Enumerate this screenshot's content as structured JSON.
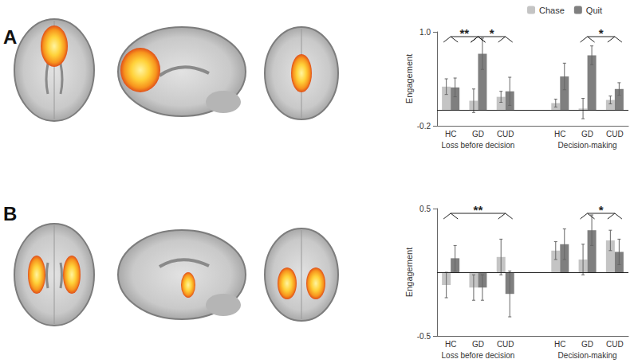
{
  "chart_data": [
    {
      "type": "bar",
      "title": "A",
      "y_label": "Engagement",
      "categories": [
        "HC",
        "GD",
        "CUD",
        null,
        "HC",
        "GD",
        "CUD"
      ],
      "group_labels": [
        "Loss before decision",
        "Decision-making"
      ],
      "series": [
        {
          "name": "Chase",
          "color": "#c4c4c4",
          "values": [
            0.3,
            0.12,
            0.17,
            null,
            0.09,
            0.02,
            0.13
          ],
          "errors": [
            0.1,
            0.15,
            0.07,
            null,
            0.05,
            0.13,
            0.05
          ]
        },
        {
          "name": "Quit",
          "color": "#7f7f7f",
          "values": [
            0.29,
            0.72,
            0.24,
            null,
            0.43,
            0.7,
            0.27
          ],
          "errors": [
            0.12,
            0.2,
            0.18,
            null,
            0.17,
            0.12,
            0.08
          ]
        }
      ],
      "ylim": [
        -0.2,
        1.0
      ],
      "yticks": [
        -0.2,
        {
          "value": 1.0,
          "label": "1.0"
        }
      ],
      "grid": false,
      "legend": "top right",
      "annotations": [
        {
          "group": "Loss before decision",
          "categories": [
            "HC",
            "GD"
          ],
          "label": "**"
        },
        {
          "group": "Loss before decision",
          "categories": [
            "GD",
            "CUD"
          ],
          "label": "*"
        },
        {
          "group": "Decision-making",
          "categories": [
            "GD",
            "CUD"
          ],
          "label": "*"
        }
      ]
    },
    {
      "type": "bar",
      "title": "B",
      "y_label": "Engagement",
      "categories": [
        "HC",
        "GD",
        "CUD",
        null,
        "HC",
        "GD",
        "CUD"
      ],
      "group_labels": [
        "Loss before decision",
        "Decision-making"
      ],
      "series": [
        {
          "name": "Chase",
          "color": "#c4c4c4",
          "values": [
            -0.1,
            -0.12,
            0.12,
            null,
            0.17,
            0.1,
            0.25
          ],
          "errors": [
            0.1,
            0.1,
            0.14,
            null,
            0.07,
            0.12,
            0.08
          ]
        },
        {
          "name": "Quit",
          "color": "#7f7f7f",
          "values": [
            0.11,
            -0.12,
            -0.17,
            null,
            0.22,
            0.33,
            0.16
          ],
          "errors": [
            0.1,
            0.1,
            0.18,
            null,
            0.12,
            0.12,
            0.1
          ]
        }
      ],
      "ylim": [
        -0.5,
        0.5
      ],
      "yticks": [
        -0.5,
        0.5
      ],
      "grid": false,
      "annotations": [
        {
          "group": "Loss before decision",
          "categories": [
            "HC",
            "CUD"
          ],
          "label": "**"
        },
        {
          "group": "Decision-making",
          "categories": [
            "GD",
            "CUD"
          ],
          "label": "*"
        }
      ]
    }
  ]
}
